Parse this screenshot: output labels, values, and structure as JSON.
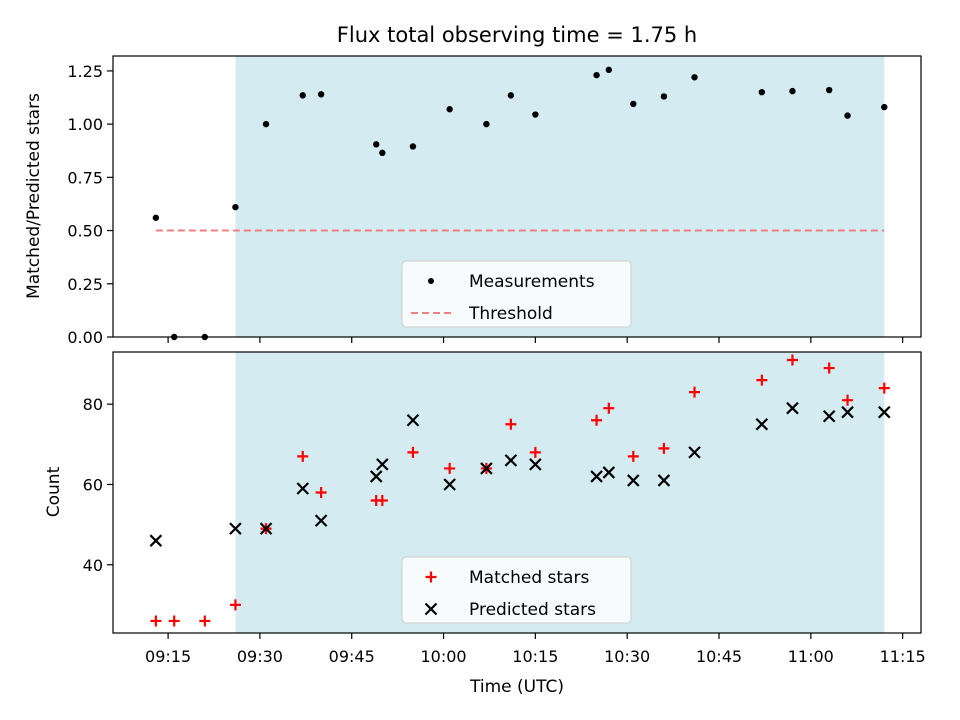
{
  "chart_data": [
    {
      "type": "scatter",
      "title": "Flux total observing time = 1.75 h",
      "xlabel": "",
      "ylabel": "Matched/Predicted stars",
      "ylim": [
        0,
        1.32
      ],
      "xlim": [
        "09:06",
        "11:18"
      ],
      "yticks": [
        0.0,
        0.25,
        0.5,
        0.75,
        1.0,
        1.25
      ],
      "ytick_labels": [
        "0.00",
        "0.25",
        "0.50",
        "0.75",
        "1.00",
        "1.25"
      ],
      "legend_position": "lower-center",
      "shaded_region": {
        "x_start": "09:26",
        "x_end": "11:12",
        "color": "#d4ebf1"
      },
      "series": [
        {
          "name": "Measurements",
          "marker": "dot",
          "color": "#000000",
          "x": [
            "09:13",
            "09:16",
            "09:21",
            "09:26",
            "09:31",
            "09:37",
            "09:40",
            "09:49",
            "09:50",
            "09:55",
            "10:01",
            "10:07",
            "10:11",
            "10:15",
            "10:25",
            "10:27",
            "10:31",
            "10:36",
            "10:41",
            "10:52",
            "10:57",
            "11:03",
            "11:06",
            "11:12"
          ],
          "y": [
            0.56,
            0.0,
            0.0,
            0.61,
            1.0,
            1.135,
            1.14,
            0.905,
            0.865,
            0.895,
            1.07,
            1.0,
            1.135,
            1.045,
            1.23,
            1.255,
            1.095,
            1.13,
            1.22,
            1.15,
            1.155,
            1.16,
            1.04,
            1.08
          ]
        },
        {
          "name": "Threshold",
          "marker": "dashed-line",
          "color": "#f08080",
          "x": [
            "09:13",
            "11:12"
          ],
          "y": [
            0.5,
            0.5
          ]
        }
      ]
    },
    {
      "type": "scatter",
      "title": "",
      "xlabel": "Time (UTC)",
      "ylabel": "Count",
      "ylim": [
        23,
        93
      ],
      "xlim": [
        "09:06",
        "11:18"
      ],
      "yticks": [
        40,
        60,
        80
      ],
      "ytick_labels": [
        "40",
        "60",
        "80"
      ],
      "xticks": [
        "09:15",
        "09:30",
        "09:45",
        "10:00",
        "10:15",
        "10:30",
        "10:45",
        "11:00",
        "11:15"
      ],
      "legend_position": "lower-center",
      "shaded_region": {
        "x_start": "09:26",
        "x_end": "11:12",
        "color": "#d4ebf1"
      },
      "series": [
        {
          "name": "Matched stars",
          "marker": "plus",
          "color": "#ff0000",
          "x": [
            "09:13",
            "09:16",
            "09:21",
            "09:26",
            "09:31",
            "09:37",
            "09:40",
            "09:49",
            "09:50",
            "09:55",
            "10:01",
            "10:07",
            "10:11",
            "10:15",
            "10:25",
            "10:27",
            "10:31",
            "10:36",
            "10:41",
            "10:52",
            "10:57",
            "11:03",
            "11:06",
            "11:12"
          ],
          "y": [
            26,
            26,
            26,
            30,
            49,
            67,
            58,
            56,
            56,
            68,
            64,
            64,
            75,
            68,
            76,
            79,
            67,
            69,
            83,
            86,
            91,
            89,
            81,
            84
          ]
        },
        {
          "name": "Predicted stars",
          "marker": "x",
          "color": "#000000",
          "x": [
            "09:13",
            "09:26",
            "09:31",
            "09:37",
            "09:40",
            "09:49",
            "09:50",
            "09:55",
            "10:01",
            "10:07",
            "10:11",
            "10:15",
            "10:25",
            "10:27",
            "10:31",
            "10:36",
            "10:41",
            "10:52",
            "10:57",
            "11:03",
            "11:06",
            "11:12"
          ],
          "y": [
            46,
            49,
            49,
            59,
            51,
            62,
            65,
            76,
            60,
            64,
            66,
            65,
            62,
            63,
            61,
            61,
            68,
            75,
            79,
            77,
            78,
            78
          ]
        }
      ]
    }
  ]
}
